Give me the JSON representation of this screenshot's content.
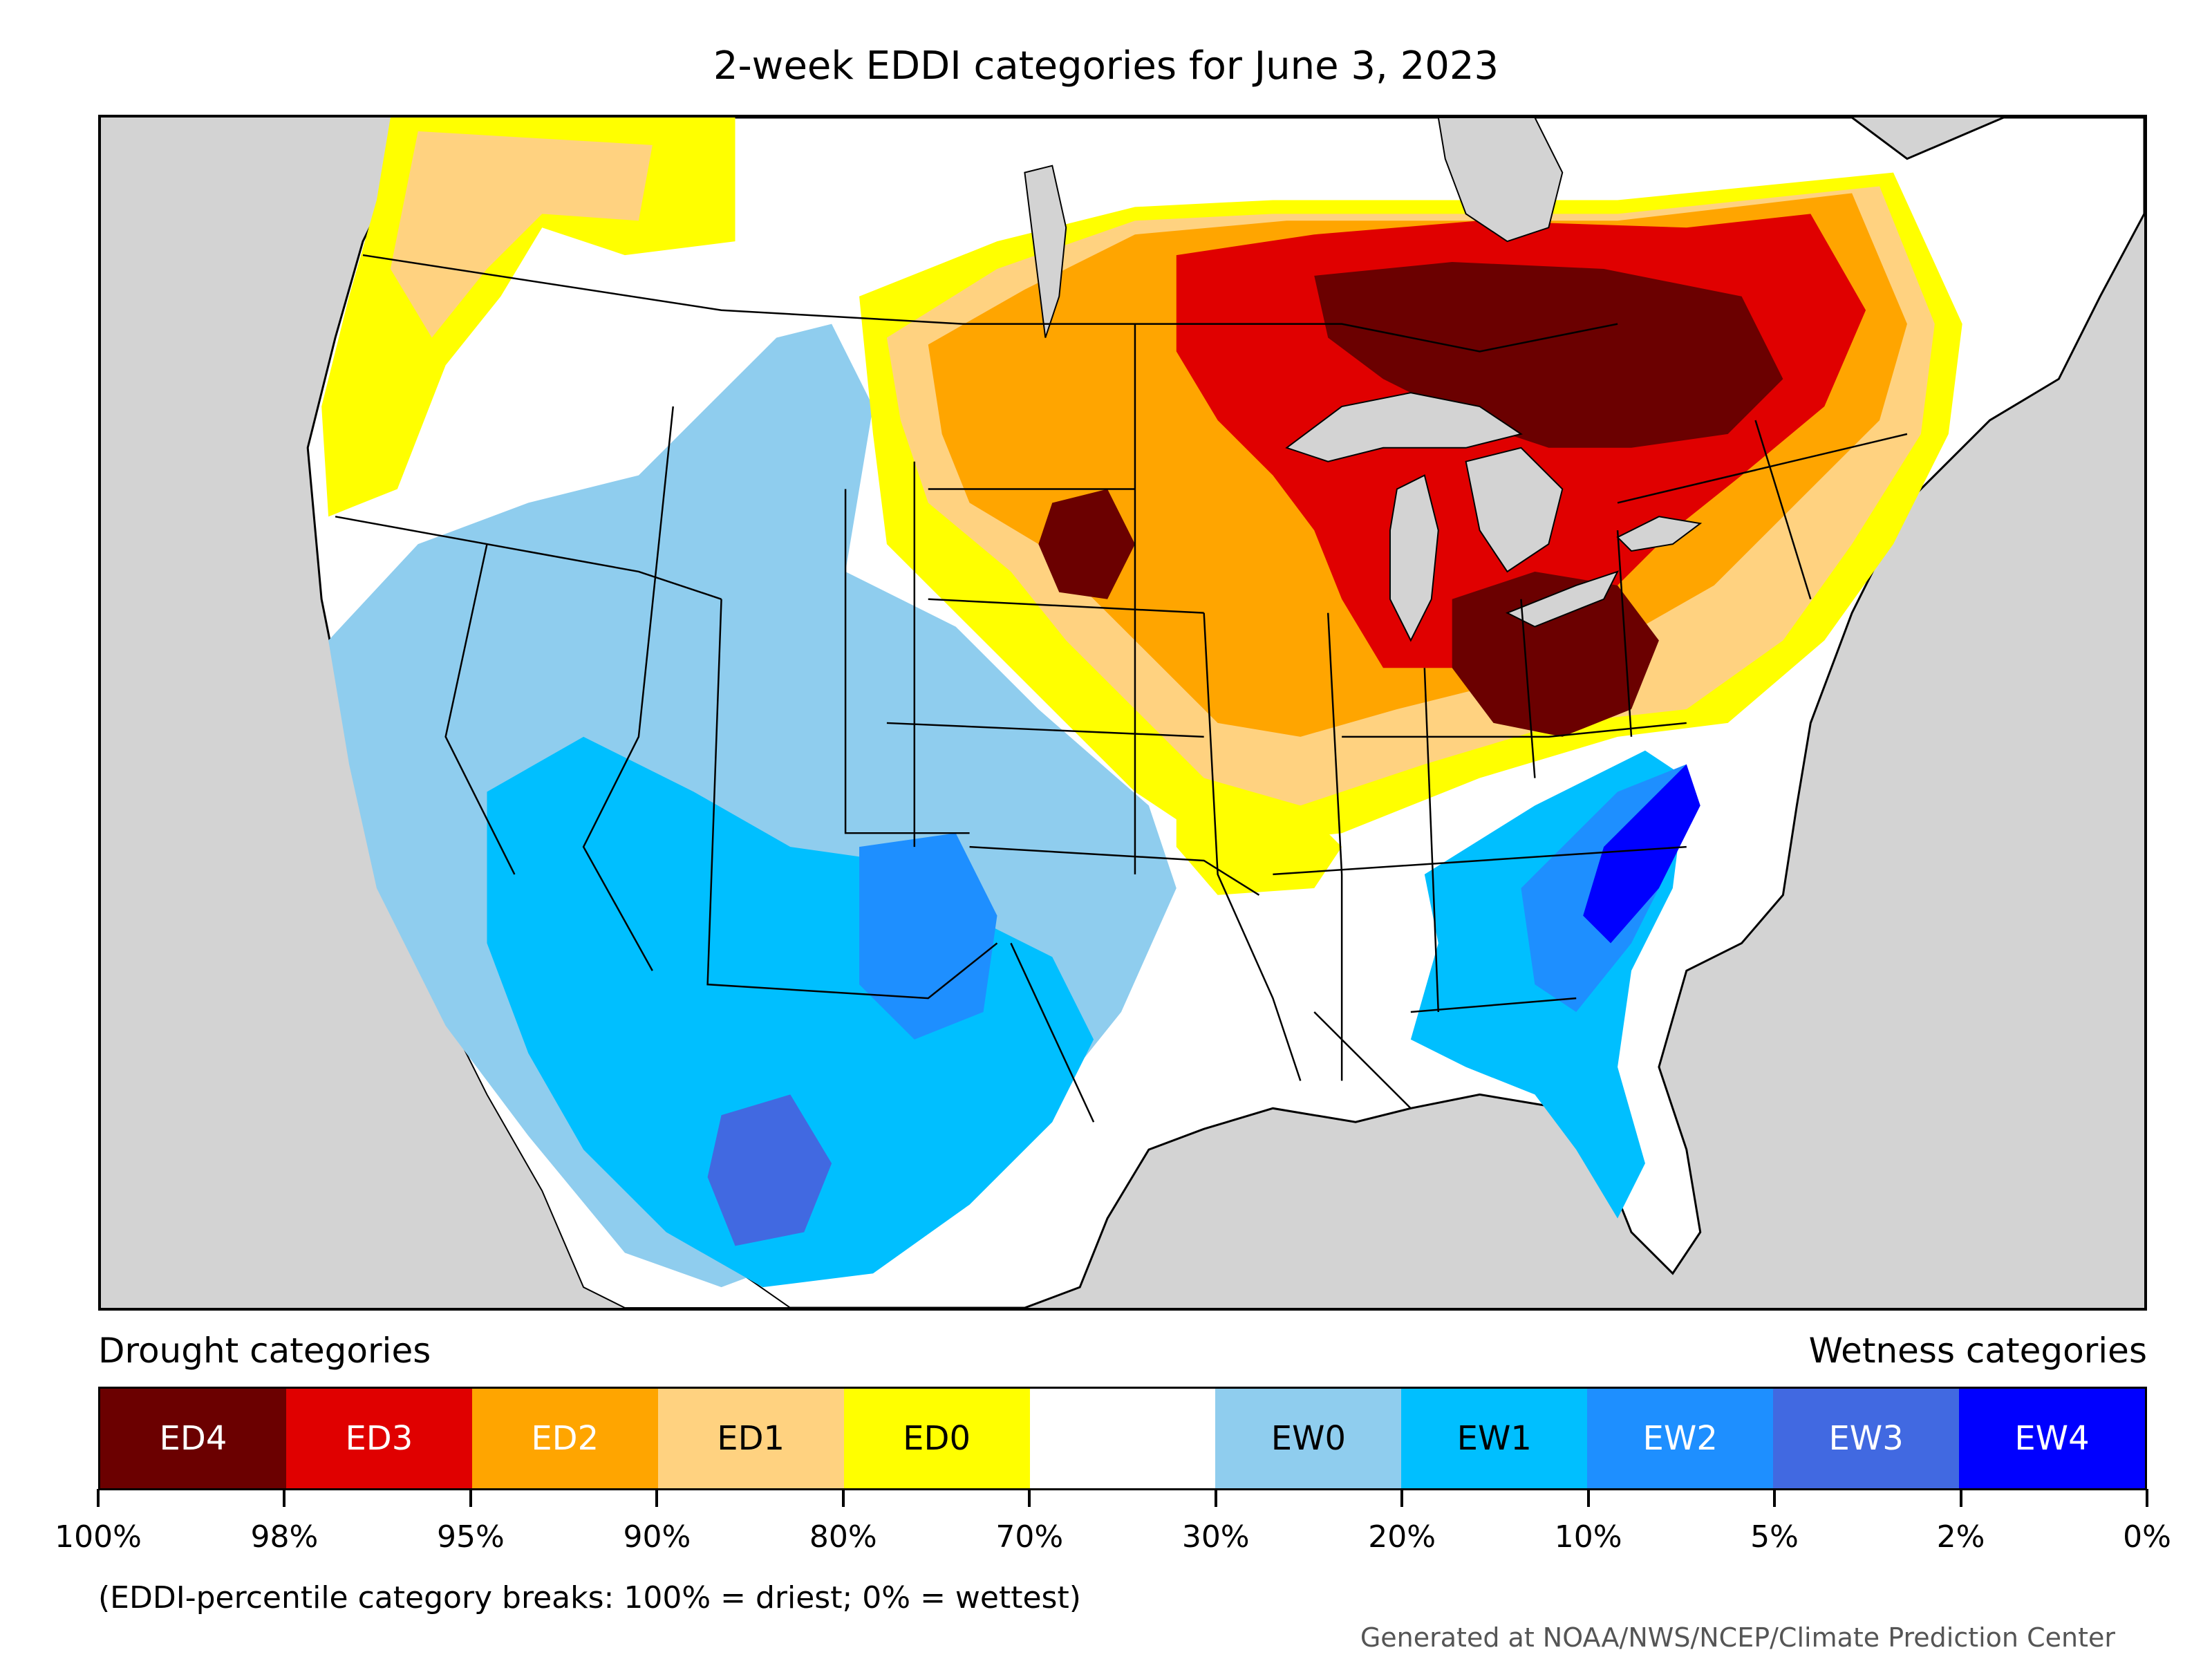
{
  "title": "2-week EDDI categories for June 3, 2023",
  "legend": {
    "drought_heading": "Drought categories",
    "wetness_heading": "Wetness categories",
    "categories": [
      {
        "label": "ED4",
        "color": "#6b0000",
        "text_color": "#ffffff"
      },
      {
        "label": "ED3",
        "color": "#e00000",
        "text_color": "#ffffff"
      },
      {
        "label": "ED2",
        "color": "#ffa500",
        "text_color": "#ffffff"
      },
      {
        "label": "ED1",
        "color": "#ffd280",
        "text_color": "#000000"
      },
      {
        "label": "ED0",
        "color": "#ffff00",
        "text_color": "#000000"
      },
      {
        "label": "",
        "color": "#ffffff",
        "text_color": "#000000"
      },
      {
        "label": "EW0",
        "color": "#8fcdee",
        "text_color": "#000000"
      },
      {
        "label": "EW1",
        "color": "#00bfff",
        "text_color": "#000000"
      },
      {
        "label": "EW2",
        "color": "#1e8fff",
        "text_color": "#ffffff"
      },
      {
        "label": "EW3",
        "color": "#4169e1",
        "text_color": "#ffffff"
      },
      {
        "label": "EW4",
        "color": "#0000ff",
        "text_color": "#ffffff"
      }
    ],
    "breaks": [
      "100%",
      "98%",
      "95%",
      "90%",
      "80%",
      "70%",
      "30%",
      "20%",
      "10%",
      "5%",
      "2%",
      "0%"
    ]
  },
  "note": "(EDDI-percentile category breaks: 100% = driest; 0% = wettest)",
  "credit": "Generated at NOAA/NWS/NCEP/Climate Prediction Center",
  "map": {
    "background_color": "#d3d3d3",
    "land_color": "#ffffff",
    "regions": [
      {
        "name": "northwest-yellow",
        "category": "ED0"
      },
      {
        "name": "northwest-tan",
        "category": "ED1"
      },
      {
        "name": "west-light-blue",
        "category": "EW0"
      },
      {
        "name": "southwest-blue",
        "category": "EW1"
      },
      {
        "name": "new-mexico-blue",
        "category": "EW2"
      },
      {
        "name": "chihuahua-blue",
        "category": "EW3"
      },
      {
        "name": "midwest-tan",
        "category": "ED1"
      },
      {
        "name": "midwest-orange",
        "category": "ED2"
      },
      {
        "name": "midwest-red",
        "category": "ED3"
      },
      {
        "name": "great-lakes-dark",
        "category": "ED4"
      },
      {
        "name": "ohio-dark",
        "category": "ED4"
      },
      {
        "name": "dakota-dark",
        "category": "ED4"
      },
      {
        "name": "southeast-blue",
        "category": "EW1"
      },
      {
        "name": "carolina-blue",
        "category": "EW2"
      },
      {
        "name": "carolina-coast",
        "category": "EW4"
      }
    ]
  }
}
